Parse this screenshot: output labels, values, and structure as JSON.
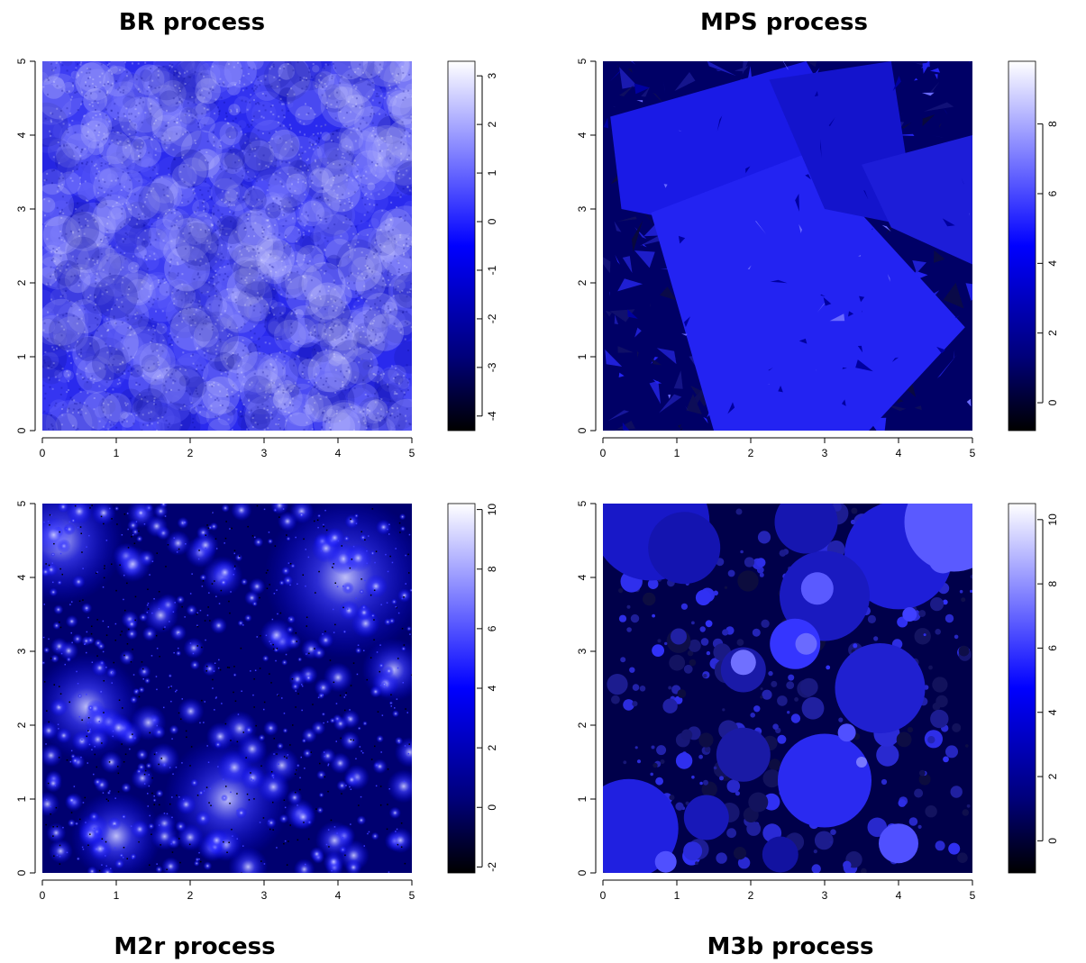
{
  "chart_data": [
    {
      "type": "heatmap",
      "title": "BR process",
      "xlim": [
        0,
        5
      ],
      "ylim": [
        0,
        5
      ],
      "xticks": [
        "0",
        "1",
        "2",
        "3",
        "4",
        "5"
      ],
      "yticks": [
        "0",
        "1",
        "2",
        "3",
        "4",
        "5"
      ],
      "colorbar": {
        "range": [
          -4.3,
          3.3
        ],
        "ticks": [
          "-4",
          "-3",
          "-2",
          "-1",
          "0",
          "1",
          "2",
          "3"
        ],
        "tick_values": [
          -4,
          -3,
          -2,
          -1,
          0,
          1,
          2,
          3
        ]
      },
      "field": "smooth",
      "colors": {
        "low": "#000000",
        "mid": "#0000ff",
        "high": "#ffffff"
      }
    },
    {
      "type": "heatmap",
      "title": "MPS process",
      "xlim": [
        0,
        5
      ],
      "ylim": [
        0,
        5
      ],
      "xticks": [
        "0",
        "1",
        "2",
        "3",
        "4",
        "5"
      ],
      "yticks": [
        "0",
        "1",
        "2",
        "3",
        "4",
        "5"
      ],
      "colorbar": {
        "range": [
          -0.8,
          9.8
        ],
        "ticks": [
          "0",
          "2",
          "4",
          "6",
          "8"
        ],
        "tick_values": [
          0,
          2,
          4,
          6,
          8
        ]
      },
      "field": "polygons",
      "colors": {
        "low": "#000000",
        "mid": "#0000ff",
        "high": "#ffffff"
      }
    },
    {
      "type": "heatmap",
      "title": "M2r process",
      "xlim": [
        0,
        5
      ],
      "ylim": [
        0,
        5
      ],
      "xticks": [
        "0",
        "1",
        "2",
        "3",
        "4",
        "5"
      ],
      "yticks": [
        "0",
        "1",
        "2",
        "3",
        "4",
        "5"
      ],
      "colorbar": {
        "range": [
          -2.2,
          10.2
        ],
        "ticks": [
          "-2",
          "0",
          "2",
          "4",
          "6",
          "8",
          "10"
        ],
        "tick_values": [
          -2,
          0,
          2,
          4,
          6,
          8,
          10
        ]
      },
      "field": "glows",
      "colors": {
        "low": "#000000",
        "mid": "#0000ff",
        "high": "#ffffff"
      }
    },
    {
      "type": "heatmap",
      "title": "M3b process",
      "xlim": [
        0,
        5
      ],
      "ylim": [
        0,
        5
      ],
      "xticks": [
        "0",
        "1",
        "2",
        "3",
        "4",
        "5"
      ],
      "yticks": [
        "0",
        "1",
        "2",
        "3",
        "4",
        "5"
      ],
      "colorbar": {
        "range": [
          -1.0,
          10.5
        ],
        "ticks": [
          "0",
          "2",
          "4",
          "6",
          "8",
          "10"
        ],
        "tick_values": [
          0,
          2,
          4,
          6,
          8,
          10
        ]
      },
      "field": "discs",
      "colors": {
        "low": "#000000",
        "mid": "#0000ff",
        "high": "#ffffff"
      }
    }
  ]
}
